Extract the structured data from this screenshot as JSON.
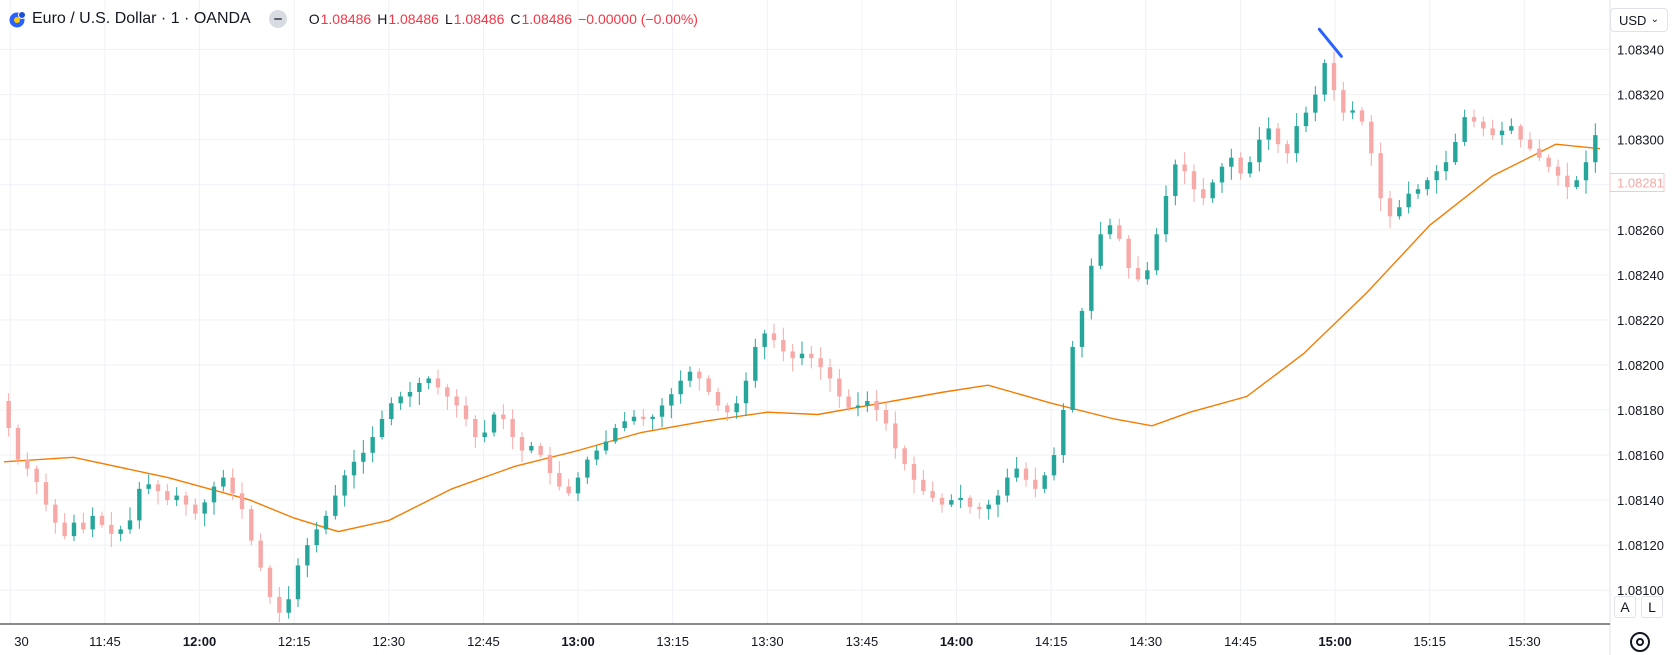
{
  "legend": {
    "title": "Euro / U.S. Dollar · 1 · OANDA",
    "o_label": "O",
    "o_value": "1.08486",
    "h_label": "H",
    "h_value": "1.08486",
    "l_label": "L",
    "l_value": "1.08486",
    "c_label": "C",
    "c_value": "1.08486",
    "change": "−0.00000 (−0.00%)"
  },
  "currency": {
    "label": "USD"
  },
  "scale_buttons": {
    "auto": "A",
    "log": "L"
  },
  "colors": {
    "up": "#26a69a",
    "down": "#f7a9a7",
    "ma": "#f57c00",
    "grid": "#eef2f6",
    "axis_text": "#131722",
    "drawing": "#2962ff"
  },
  "chart_data": {
    "type": "candlestick",
    "ylim": [
      1.08085,
      1.08362
    ],
    "y_ticks": [
      "1.08100",
      "1.08120",
      "1.08140",
      "1.08160",
      "1.08180",
      "1.08200",
      "1.08220",
      "1.08240",
      "1.08260",
      "1.08280",
      "1.08300",
      "1.08320",
      "1.08340"
    ],
    "x_ticks": [
      {
        "t": 690,
        "label": "30",
        "bold": false
      },
      {
        "t": 705,
        "label": "11:45",
        "bold": false
      },
      {
        "t": 720,
        "label": "12:00",
        "bold": true
      },
      {
        "t": 735,
        "label": "12:15",
        "bold": false
      },
      {
        "t": 750,
        "label": "12:30",
        "bold": false
      },
      {
        "t": 765,
        "label": "12:45",
        "bold": false
      },
      {
        "t": 780,
        "label": "13:00",
        "bold": true
      },
      {
        "t": 795,
        "label": "13:15",
        "bold": false
      },
      {
        "t": 810,
        "label": "13:30",
        "bold": false
      },
      {
        "t": 825,
        "label": "13:45",
        "bold": false
      },
      {
        "t": 840,
        "label": "14:00",
        "bold": true
      },
      {
        "t": 855,
        "label": "14:15",
        "bold": false
      },
      {
        "t": 870,
        "label": "14:30",
        "bold": false
      },
      {
        "t": 885,
        "label": "14:45",
        "bold": false
      },
      {
        "t": 900,
        "label": "15:00",
        "bold": true
      },
      {
        "t": 915,
        "label": "15:15",
        "bold": false
      },
      {
        "t": 930,
        "label": "15:30",
        "bold": false
      }
    ],
    "current_price_label": "1.08281",
    "current_price": 1.08281,
    "time_start_min": 689,
    "time_end_min": 942,
    "candles": [
      1.08172,
      1.08158,
      1.08154,
      1.08148,
      1.08138,
      1.0813,
      1.08124,
      1.0813,
      1.08127,
      1.08133,
      1.08129,
      1.08125,
      1.08127,
      1.08131,
      1.08145,
      1.08147,
      1.08144,
      1.0814,
      1.08142,
      1.08138,
      1.08134,
      1.08139,
      1.08146,
      1.0815,
      1.08143,
      1.08136,
      1.08122,
      1.0811,
      1.08097,
      1.0809,
      1.08096,
      1.08111,
      1.0812,
      1.08127,
      1.08133,
      1.08142,
      1.08151,
      1.08157,
      1.08161,
      1.08168,
      1.08176,
      1.08183,
      1.08186,
      1.08188,
      1.08192,
      1.08194,
      1.0819,
      1.08186,
      1.08182,
      1.08176,
      1.08168,
      1.0817,
      1.08178,
      1.08176,
      1.08168,
      1.08162,
      1.08164,
      1.0816,
      1.08152,
      1.08146,
      1.08143,
      1.0815,
      1.08158,
      1.08162,
      1.08166,
      1.08172,
      1.08175,
      1.08177,
      1.08176,
      1.08177,
      1.08182,
      1.08187,
      1.08193,
      1.08197,
      1.08194,
      1.08188,
      1.08182,
      1.08179,
      1.08183,
      1.08193,
      1.08208,
      1.08214,
      1.08211,
      1.08206,
      1.08203,
      1.08205,
      1.08203,
      1.08199,
      1.08194,
      1.08186,
      1.08181,
      1.08182,
      1.08184,
      1.0818,
      1.08174,
      1.08163,
      1.08156,
      1.08149,
      1.08144,
      1.08141,
      1.08138,
      1.0814,
      1.08141,
      1.08137,
      1.08136,
      1.08138,
      1.08142,
      1.0815,
      1.08154,
      1.08149,
      1.08145,
      1.08151,
      1.0816,
      1.0818,
      1.08208,
      1.08224,
      1.08244,
      1.08258,
      1.08262,
      1.08256,
      1.08243,
      1.08238,
      1.08242,
      1.08258,
      1.08275,
      1.08289,
      1.08286,
      1.08278,
      1.08274,
      1.08281,
      1.08288,
      1.08292,
      1.08285,
      1.0829,
      1.083,
      1.08305,
      1.08298,
      1.08294,
      1.08306,
      1.08312,
      1.0832,
      1.08334,
      1.08322,
      1.08312,
      1.08313,
      1.08308,
      1.08294,
      1.08274,
      1.08266,
      1.0827,
      1.08276,
      1.08278,
      1.08282,
      1.08286,
      1.0829,
      1.08299,
      1.0831,
      1.08308,
      1.08305,
      1.08302,
      1.08304,
      1.08306,
      1.083,
      1.08296,
      1.08292,
      1.08288,
      1.08284,
      1.08279,
      1.08282,
      1.0829,
      1.08302
    ],
    "ma": [
      [
        689,
        1.08157
      ],
      [
        700,
        1.08159
      ],
      [
        715,
        1.0815
      ],
      [
        728,
        1.0814
      ],
      [
        735,
        1.08132
      ],
      [
        742,
        1.08126
      ],
      [
        750,
        1.08131
      ],
      [
        760,
        1.08145
      ],
      [
        770,
        1.08155
      ],
      [
        780,
        1.08162
      ],
      [
        790,
        1.0817
      ],
      [
        800,
        1.08175
      ],
      [
        810,
        1.08179
      ],
      [
        818,
        1.08178
      ],
      [
        828,
        1.08183
      ],
      [
        838,
        1.08188
      ],
      [
        845,
        1.08191
      ],
      [
        855,
        1.08183
      ],
      [
        865,
        1.08176
      ],
      [
        871,
        1.08173
      ],
      [
        877,
        1.08179
      ],
      [
        886,
        1.08186
      ],
      [
        895,
        1.08205
      ],
      [
        905,
        1.08232
      ],
      [
        915,
        1.08262
      ],
      [
        925,
        1.08284
      ],
      [
        935,
        1.08298
      ],
      [
        942,
        1.08296
      ]
    ]
  }
}
